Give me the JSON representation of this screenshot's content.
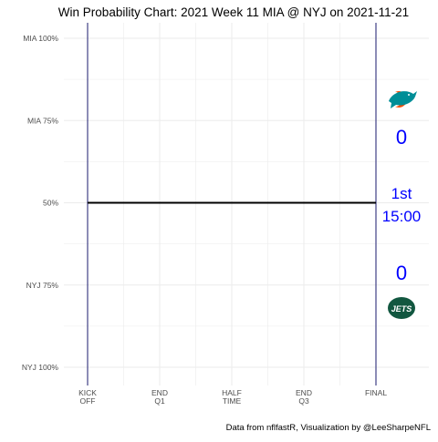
{
  "chart_data": {
    "type": "line",
    "title": "Win Probability Chart: 2021 Week 11 MIA @ NYJ on 2021-11-21",
    "caption": "Data from nflfastR, Visualization by @LeeSharpeNFL",
    "y_tick_labels": [
      "MIA 100%",
      "MIA 75%",
      "50%",
      "NYJ 75%",
      "NYJ 100%"
    ],
    "y_tick_values": [
      1.0,
      0.75,
      0.5,
      0.25,
      0.0
    ],
    "ylim": [
      0,
      1
    ],
    "x_ticks": [
      {
        "line1": "KICK",
        "line2": "OFF",
        "value": 0
      },
      {
        "line1": "END",
        "line2": "Q1",
        "value": 15
      },
      {
        "line1": "HALF",
        "line2": "TIME",
        "value": 30
      },
      {
        "line1": "END",
        "line2": "Q3",
        "value": 45
      },
      {
        "line1": "FINAL",
        "line2": "",
        "value": 60
      }
    ],
    "xlim": [
      0,
      60
    ],
    "series": [
      {
        "x": [
          0,
          60
        ],
        "y": [
          0.5,
          0.5
        ]
      }
    ],
    "grid": true,
    "colors": {
      "win_prob_line": "#000000",
      "period_lines": "#1a1a6e",
      "score_text": "#0000ff",
      "grid": "#ebebeb",
      "mia_aqua": "#008E97",
      "mia_orange": "#FC4C02",
      "nyj_green": "#125740"
    },
    "scoreboard": {
      "away_team": "MIA",
      "home_team": "NYJ",
      "away_score": "0",
      "home_score": "0",
      "quarter": "1st",
      "clock": "15:00",
      "away_logo_icon": "dolphin-logo",
      "home_logo_icon": "jets-logo",
      "home_logo_text": "JETS"
    }
  }
}
